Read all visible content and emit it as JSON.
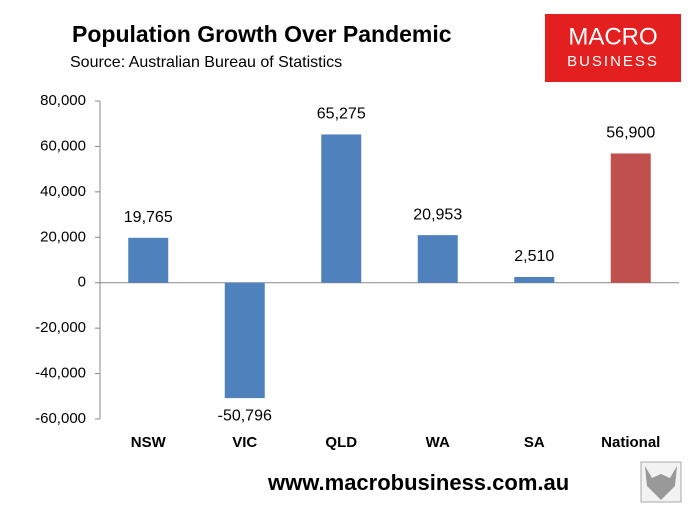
{
  "chart_data": {
    "type": "bar",
    "title": "Population Growth Over Pandemic",
    "subtitle": "Source: Australian Bureau of Statistics",
    "logo": [
      "MACRO",
      "BUSINESS"
    ],
    "footer": "www.macrobusiness.com.au",
    "categories": [
      "NSW",
      "VIC",
      "QLD",
      "WA",
      "SA",
      "National"
    ],
    "values": [
      19765,
      -50796,
      65275,
      20953,
      2510,
      56900
    ],
    "value_labels": [
      "19,765",
      "-50,796",
      "65,275",
      "20,953",
      "2,510",
      "56,900"
    ],
    "colors": [
      "#4f81bd",
      "#4f81bd",
      "#4f81bd",
      "#4f81bd",
      "#4f81bd",
      "#c0504d"
    ],
    "ylim": [
      -60000,
      80000
    ],
    "yticks": [
      {
        "value": -60000,
        "label": "-60,000"
      },
      {
        "value": -40000,
        "label": "-40,000"
      },
      {
        "value": -20000,
        "label": "-20,000"
      },
      0,
      {
        "value": 20000,
        "label": "20,000"
      },
      {
        "value": 40000,
        "label": "40,000"
      },
      {
        "value": 60000,
        "label": "60,000"
      },
      {
        "value": 80000,
        "label": "80,000"
      }
    ],
    "grid": false
  }
}
